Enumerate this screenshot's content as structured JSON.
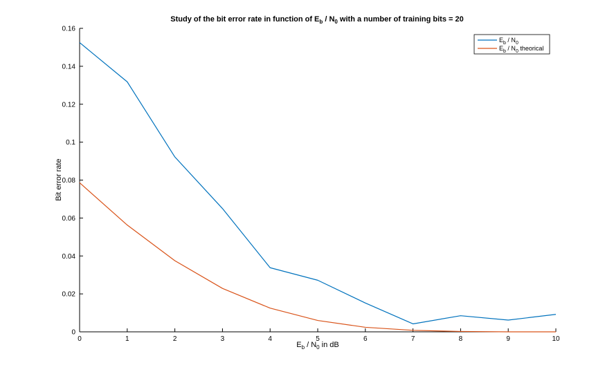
{
  "chart_data": {
    "type": "line",
    "title": {
      "prefix": "Study of the bit error rate in function of E",
      "sub1": "b",
      "middle": " / N",
      "sub2": "0",
      "suffix": " with a number of training bits = 20"
    },
    "xlabel": {
      "main1": "E",
      "sub1": "b",
      "main2": " / N",
      "sub2": "0",
      "main3": " in dB"
    },
    "ylabel": "Bit error rate",
    "xlim": [
      0,
      10
    ],
    "ylim": [
      0,
      0.16
    ],
    "x_ticks": [
      "0",
      "1",
      "2",
      "3",
      "4",
      "5",
      "6",
      "7",
      "8",
      "9",
      "10"
    ],
    "y_ticks": [
      "0",
      "0.02",
      "0.04",
      "0.06",
      "0.08",
      "0.1",
      "0.12",
      "0.14",
      "0.16"
    ],
    "grid": false,
    "legend_position": "top-right",
    "x": [
      0,
      1,
      2,
      3,
      4,
      5,
      6,
      7,
      8,
      9,
      10
    ],
    "series": [
      {
        "legend": {
          "main1": "E",
          "sub1": "b",
          "main2": " / N",
          "sub2": "0",
          "main3": ""
        },
        "color": "#0072bd",
        "values": [
          0.1525,
          0.1318,
          0.0922,
          0.065,
          0.0338,
          0.0272,
          0.0152,
          0.0042,
          0.0085,
          0.0062,
          0.0092
        ]
      },
      {
        "legend": {
          "main1": "E",
          "sub1": "b",
          "main2": " / N",
          "sub2": "0",
          "main3": " theorical"
        },
        "color": "#d95319",
        "values": [
          0.0786,
          0.0563,
          0.0375,
          0.0229,
          0.0125,
          0.006,
          0.0024,
          0.0008,
          0.0002,
          0.0,
          0.0
        ]
      }
    ]
  }
}
